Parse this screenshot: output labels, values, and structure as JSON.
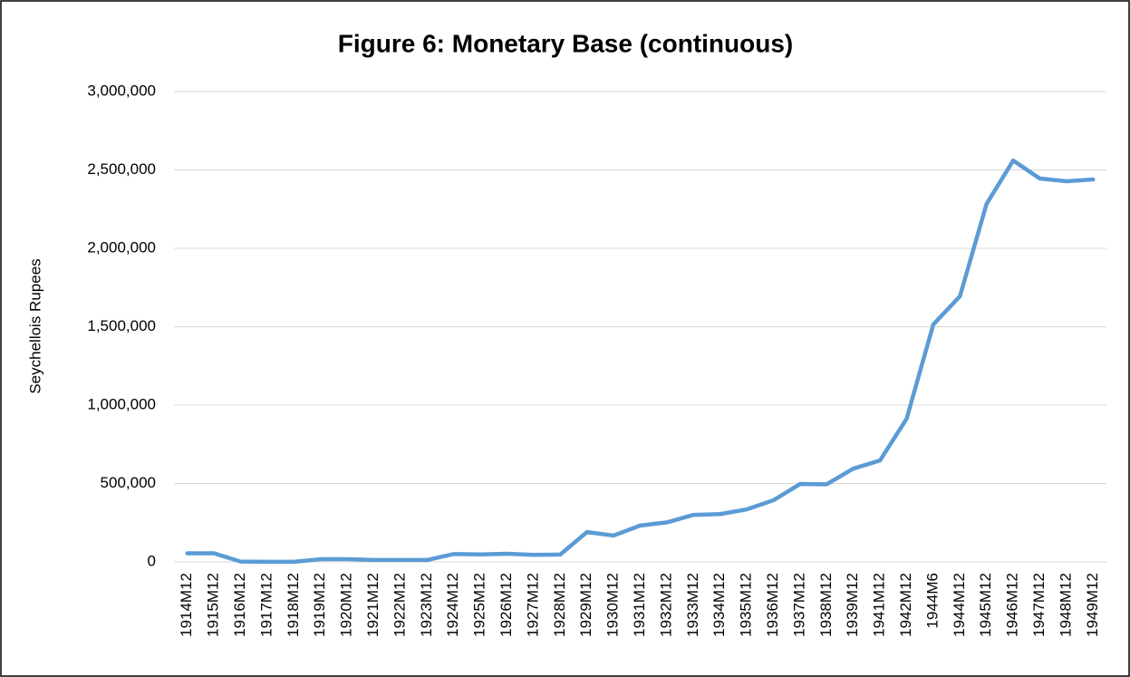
{
  "chart_data": {
    "type": "line",
    "title": "Figure 6: Monetary Base (continuous)",
    "y_label": "Seychellois Rupees",
    "categories": [
      "1914M12",
      "1915M12",
      "1916M12",
      "1917M12",
      "1918M12",
      "1919M12",
      "1920M12",
      "1921M12",
      "1922M12",
      "1923M12",
      "1924M12",
      "1925M12",
      "1926M12",
      "1927M12",
      "1928M12",
      "1929M12",
      "1930M12",
      "1931M12",
      "1932M12",
      "1933M12",
      "1934M12",
      "1935M12",
      "1936M12",
      "1937M12",
      "1938M12",
      "1939M12",
      "1941M12",
      "1942M12",
      "1944M6",
      "1944M12",
      "1945M12",
      "1946M12",
      "1947M12",
      "1948M12",
      "1949M12"
    ],
    "series": [
      {
        "name": "Monetary Base",
        "color": "#5b9bd5",
        "values": [
          55000,
          55000,
          2000,
          1000,
          1000,
          17000,
          17000,
          12000,
          12000,
          12000,
          50000,
          48000,
          52000,
          45000,
          47000,
          190000,
          168000,
          232000,
          252000,
          300000,
          305000,
          335000,
          393000,
          497000,
          495000,
          595000,
          647000,
          913000,
          1514000,
          1694000,
          2283000,
          2560000,
          2445000,
          2428000,
          2439000
        ]
      }
    ],
    "ylim": [
      0,
      3000000
    ],
    "yticks": [
      0,
      {
        "value": 500000,
        "label": "500,000"
      },
      {
        "value": 1000000,
        "label": "1,000,000"
      },
      {
        "value": 1500000,
        "label": "1,500,000"
      },
      {
        "value": 2000000,
        "label": "2,000,000"
      },
      {
        "value": 2500000,
        "label": "2,500,000"
      },
      {
        "value": 3000000,
        "label": "3,000,000"
      }
    ],
    "grid": true
  }
}
